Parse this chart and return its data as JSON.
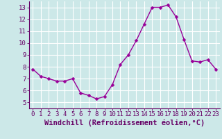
{
  "x": [
    0,
    1,
    2,
    3,
    4,
    5,
    6,
    7,
    8,
    9,
    10,
    11,
    12,
    13,
    14,
    15,
    16,
    17,
    18,
    19,
    20,
    21,
    22,
    23
  ],
  "y": [
    7.8,
    7.2,
    7.0,
    6.8,
    6.8,
    7.0,
    5.8,
    5.6,
    5.3,
    5.5,
    6.5,
    8.2,
    9.0,
    10.2,
    11.6,
    13.0,
    13.0,
    13.2,
    12.2,
    10.3,
    8.5,
    8.4,
    8.6,
    7.8
  ],
  "line_color": "#990099",
  "marker": "D",
  "marker_size": 2.5,
  "bg_color": "#cce8e8",
  "grid_color": "#b8d8d8",
  "xlabel": "Windchill (Refroidissement éolien,°C)",
  "xlabel_fontsize": 7.5,
  "tick_fontsize": 6.5,
  "ylim": [
    4.5,
    13.5
  ],
  "yticks": [
    5,
    6,
    7,
    8,
    9,
    10,
    11,
    12,
    13
  ],
  "xticks": [
    0,
    1,
    2,
    3,
    4,
    5,
    6,
    7,
    8,
    9,
    10,
    11,
    12,
    13,
    14,
    15,
    16,
    17,
    18,
    19,
    20,
    21,
    22,
    23
  ],
  "linewidth": 1.0
}
